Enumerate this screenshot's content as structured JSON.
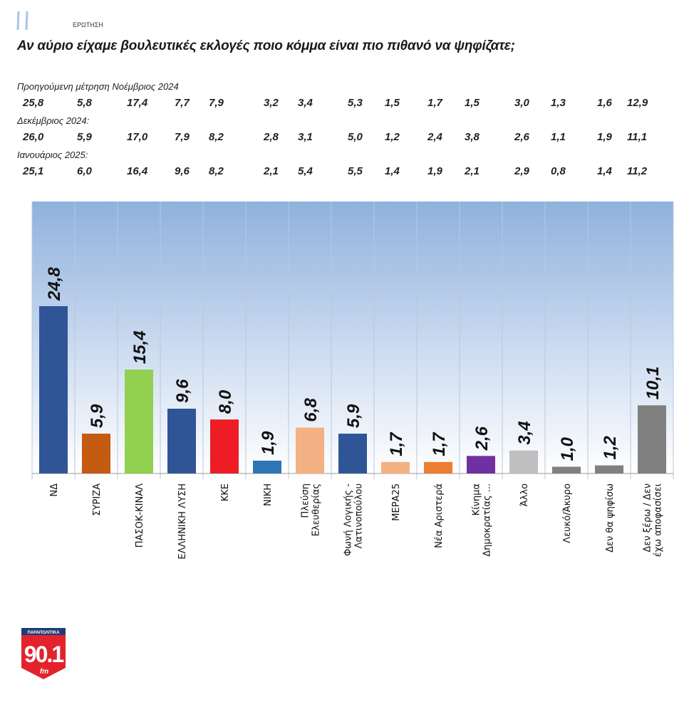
{
  "header": {
    "question_label": "ΕΡΩΤΗΣΗ",
    "title": "Αν αύριο είχαμε βουλευτικές εκλογές ποιο κόμμα είναι πιο πιθανό να ψηφίζατε;"
  },
  "previous_measurements": [
    {
      "label": "Προηγούμενη μέτρηση Νοέμβριος 2024",
      "values": [
        "25,8",
        "5,8",
        "17,4",
        "7,7",
        "7,9",
        "3,2",
        "3,4",
        "5,3",
        "1,5",
        "1,7",
        "1,5",
        "3,0",
        "1,3",
        "1,6",
        "12,9"
      ]
    },
    {
      "label": "Δεκέμβριος 2024:",
      "values": [
        "26,0",
        "5,9",
        "17,0",
        "7,9",
        "8,2",
        "2,8",
        "3,1",
        "5,0",
        "1,2",
        "2,4",
        "3,8",
        "2,6",
        "1,1",
        "1,9",
        "11,1"
      ]
    },
    {
      "label": "Ιανουάριος 2025:",
      "values": [
        "25,1",
        "6,0",
        "16,4",
        "9,6",
        "8,2",
        "2,1",
        "5,4",
        "5,5",
        "1,4",
        "1,9",
        "2,1",
        "2,9",
        "0,8",
        "1,4",
        "11,2"
      ]
    }
  ],
  "chart_data": {
    "type": "bar",
    "title": "Αν αύριο είχαμε βουλευτικές εκλογές ποιο κόμμα είναι πιο πιθανό να ψηφίζατε;",
    "categories": [
      [
        "ΝΔ"
      ],
      [
        "ΣΥΡΙΖΑ"
      ],
      [
        "ΠΑΣΟΚ-ΚΙΝΑΛ"
      ],
      [
        "ΕΛΛΗΝΙΚΗ ΛΥΣΗ"
      ],
      [
        "ΚΚΕ"
      ],
      [
        "ΝΙΚΗ"
      ],
      [
        "Πλεύση",
        "Ελευθερίας"
      ],
      [
        "Φωνή Λογικής -",
        "Λατινοπούλου"
      ],
      [
        "ΜΕΡΑ25"
      ],
      [
        "Νέα Αριστερά"
      ],
      [
        "Κίνημα",
        "Δημοκρατίας ..."
      ],
      [
        "Άλλο"
      ],
      [
        "Λευκό/Άκυρο"
      ],
      [
        "Δεν θα ψηφίσω"
      ],
      [
        "Δεν ξέρω / Δεν",
        "έχω αποφασίσει"
      ]
    ],
    "values": [
      24.8,
      5.9,
      15.4,
      9.6,
      8.0,
      1.9,
      6.8,
      5.9,
      1.7,
      1.7,
      2.6,
      3.4,
      1.0,
      1.2,
      10.1
    ],
    "value_labels": [
      "24,8",
      "5,9",
      "15,4",
      "9,6",
      "8,0",
      "1,9",
      "6,8",
      "5,9",
      "1,7",
      "1,7",
      "2,6",
      "3,4",
      "1,0",
      "1,2",
      "10,1"
    ],
    "colors": [
      "#2f5597",
      "#c55a11",
      "#92d050",
      "#2f5597",
      "#ee1c25",
      "#2e75b6",
      "#f4b183",
      "#2f5597",
      "#f4b183",
      "#ed7d31",
      "#7030a0",
      "#bfbfbf",
      "#808080",
      "#808080",
      "#808080"
    ],
    "ylim": [
      0,
      40
    ],
    "grid": "vertical",
    "legend": "none"
  },
  "logo": {
    "text_top": "ΠΑΡΑΠΟΛΙΤΙΚΑ",
    "text_main": "90.1",
    "text_sub": "fm"
  }
}
